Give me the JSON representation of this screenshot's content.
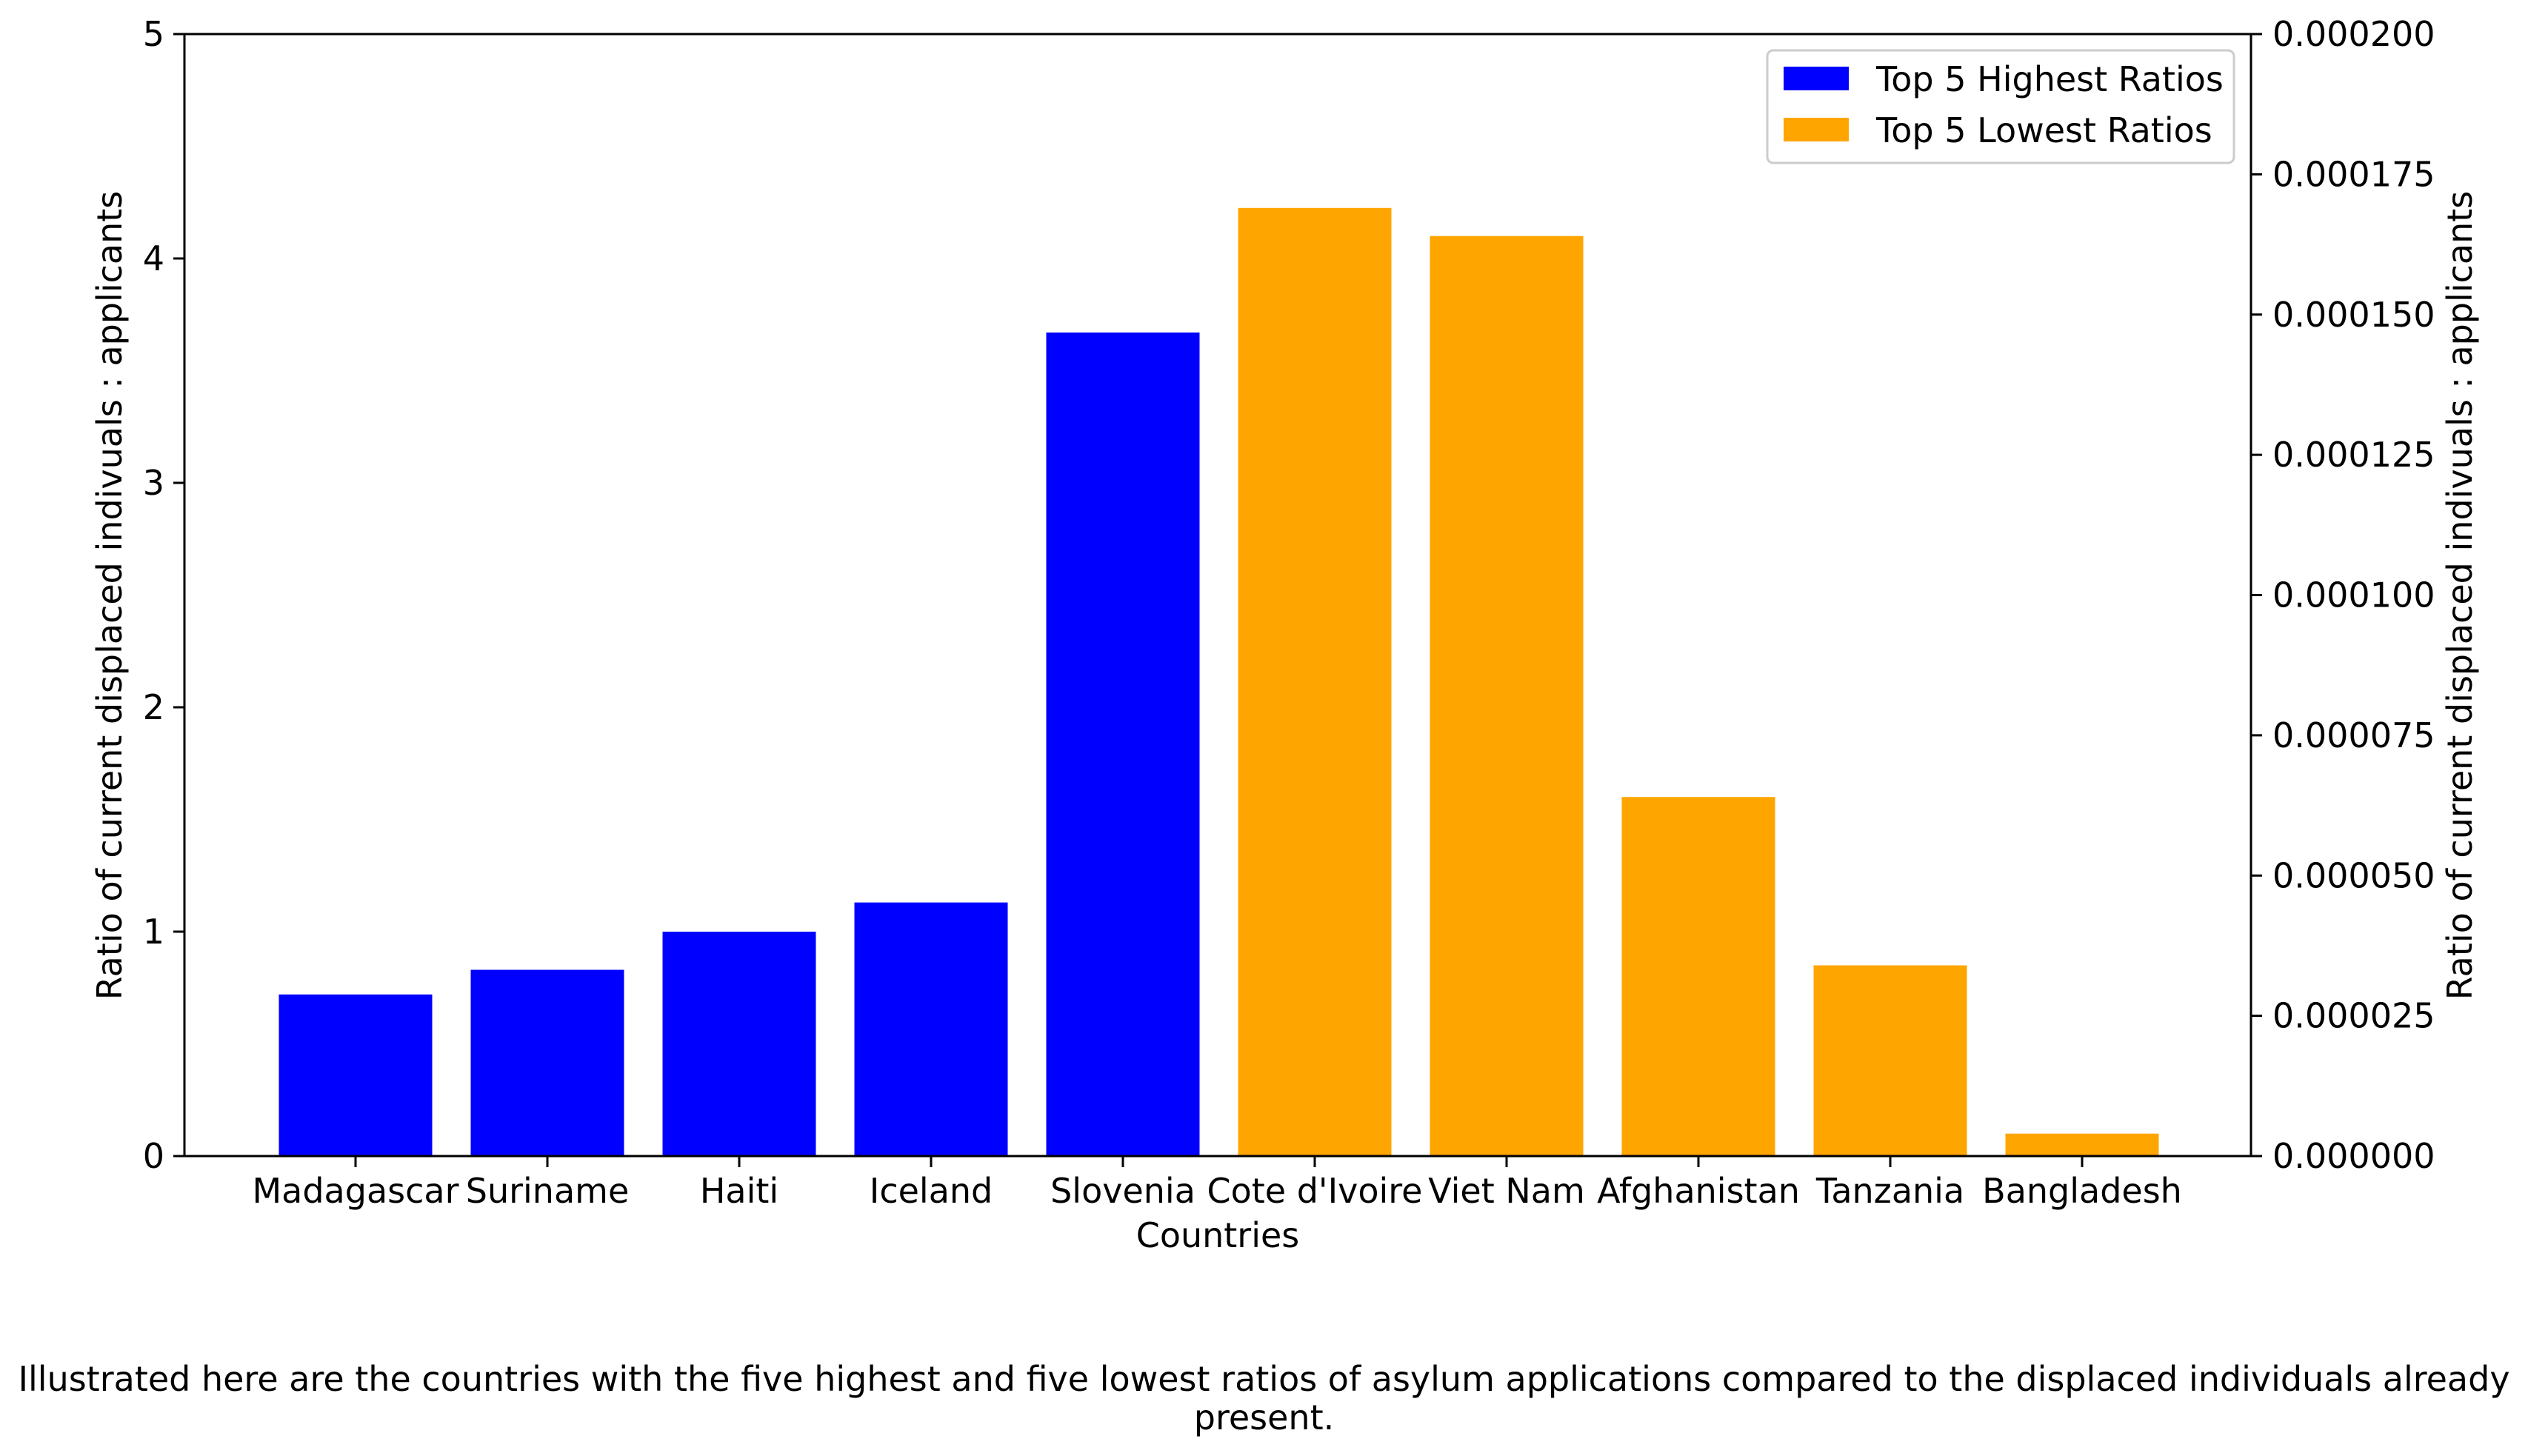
{
  "chart_data": {
    "type": "bar",
    "xlabel": "Countries",
    "ylabel": "Ratio of current displaced indivuals : applicants",
    "ylabel_right": "Ratio of current displaced indivuals : applicants",
    "ylim": [
      0,
      5
    ],
    "ylim_right": [
      0,
      0.0002
    ],
    "yticks_left": [
      "0",
      "1",
      "2",
      "3",
      "4",
      "5"
    ],
    "yticks_right": [
      "0.000000",
      "0.000025",
      "0.000050",
      "0.000075",
      "0.000100",
      "0.000125",
      "0.000150",
      "0.000175",
      "0.000200"
    ],
    "legend_position": "top-right",
    "series": [
      {
        "name": "Top 5 Highest Ratios",
        "color": "#0000ff",
        "axis": "left",
        "categories": [
          "Madagascar",
          "Suriname",
          "Haiti",
          "Iceland",
          "Slovenia"
        ],
        "values": [
          0.72,
          0.83,
          1.0,
          1.13,
          3.67
        ]
      },
      {
        "name": "Top 5 Lowest Ratios",
        "color": "#ffa500",
        "axis": "right",
        "categories": [
          "Cote d'Ivoire",
          "Viet Nam",
          "Afghanistan",
          "Tanzania",
          "Bangladesh"
        ],
        "values": [
          0.000169,
          0.000164,
          6.4e-05,
          3.4e-05,
          4e-06
        ]
      }
    ]
  },
  "caption": "Illustrated here are the countries with the five highest and five lowest ratios of asylum applications compared to the displaced individuals already present."
}
